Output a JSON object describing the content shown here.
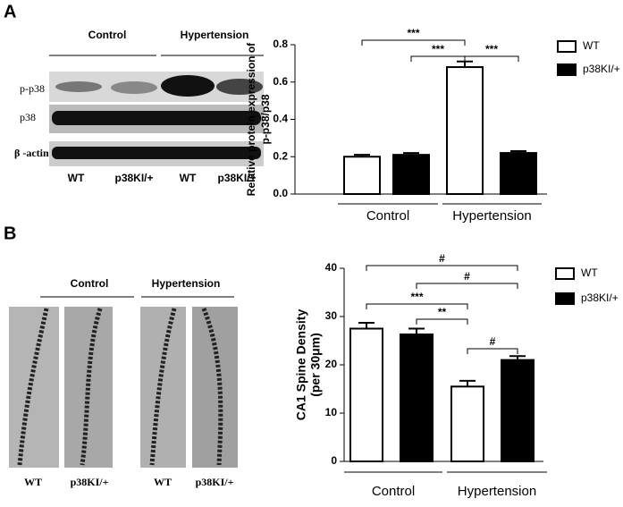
{
  "chart_data": [
    {
      "type": "bar",
      "panel": "A",
      "ylabel": [
        "Relative protein expression of",
        "p-p38/p38"
      ],
      "categories": [
        "Control",
        "Hypertension"
      ],
      "series": [
        {
          "name": "WT",
          "color": "#ffffff",
          "values": [
            0.2,
            0.68
          ],
          "errors": [
            0.01,
            0.03
          ]
        },
        {
          "name": "p38KI/+",
          "color": "#000000",
          "values": [
            0.21,
            0.22
          ],
          "errors": [
            0.01,
            0.01
          ]
        }
      ],
      "ylim": [
        0,
        0.8
      ],
      "yticks": [
        {
          "value": 0,
          "label": "0.0"
        },
        0.2,
        0.4,
        0.6,
        0.8
      ],
      "significance": [
        "***",
        "***",
        "***"
      ]
    },
    {
      "type": "bar",
      "panel": "B",
      "ylabel": [
        "CA1 Spine Density",
        "(per 30μm)"
      ],
      "categories": [
        "Control",
        "Hypertension"
      ],
      "series": [
        {
          "name": "WT",
          "color": "#ffffff",
          "values": [
            27.5,
            15.5
          ],
          "errors": [
            1.2,
            1.2
          ]
        },
        {
          "name": "p38KI/+",
          "color": "#000000",
          "values": [
            26.3,
            21
          ],
          "errors": [
            1.2,
            0.8
          ]
        }
      ],
      "ylim": [
        0,
        40
      ],
      "yticks": [
        0,
        10,
        20,
        30,
        40
      ],
      "significance": [
        "#",
        "#",
        "***",
        "**",
        "#"
      ]
    }
  ],
  "blot": {
    "groups": [
      "Control",
      "Hypertension"
    ],
    "rows": [
      "p-p38",
      "p38",
      "β -actin"
    ],
    "lanes": [
      "WT",
      "p38KI/+",
      "WT",
      "p38KI/+"
    ]
  },
  "images": {
    "groups": [
      "Control",
      "Hypertension"
    ],
    "lanes": [
      "WT",
      "p38KI/+",
      "WT",
      "p38KI/+"
    ]
  }
}
